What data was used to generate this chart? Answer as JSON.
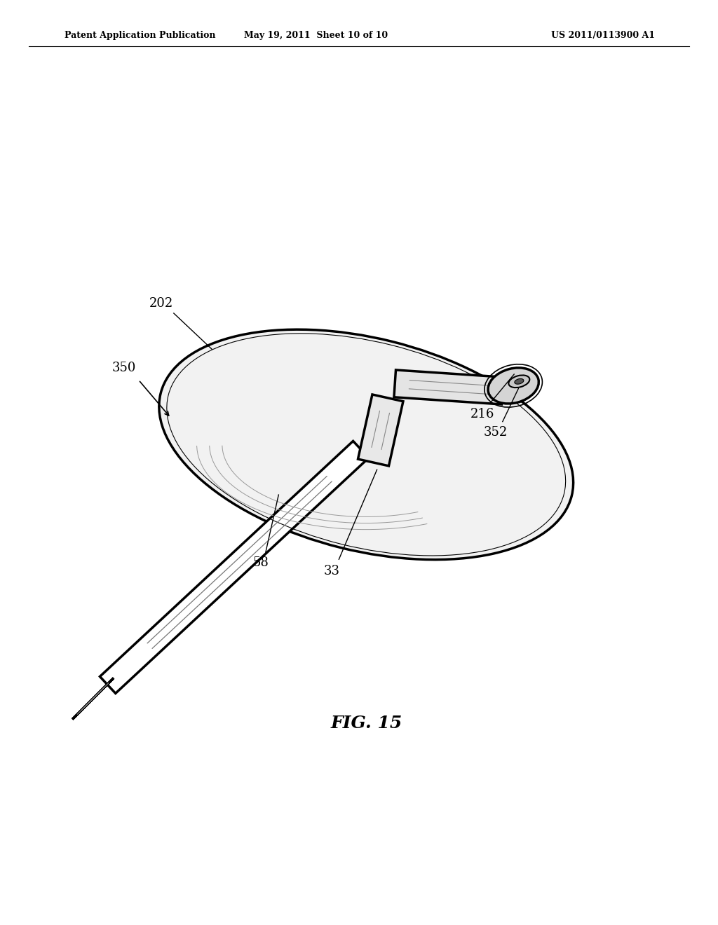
{
  "header_left": "Patent Application Publication",
  "header_mid": "May 19, 2011  Sheet 10 of 10",
  "header_right": "US 2011/0113900 A1",
  "fig_label": "FIG. 15",
  "background_color": "#ffffff",
  "line_color": "#000000",
  "lw": 1.5,
  "lw_thick": 2.5
}
